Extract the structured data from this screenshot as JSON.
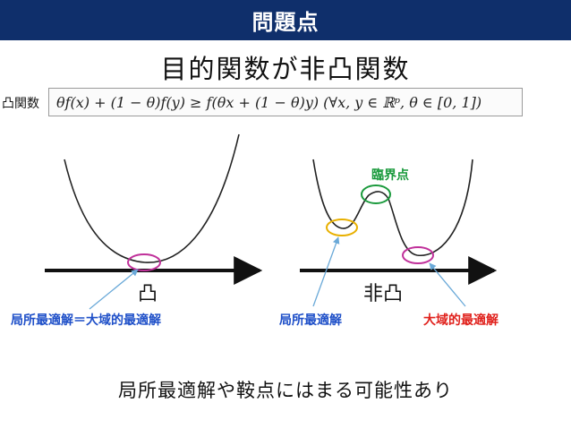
{
  "header": {
    "title": "問題点"
  },
  "subtitle": "目的関数が非凸関数",
  "formula": {
    "label": "凸関数",
    "expression": "θf(x) + (1 − θ)f(y) ≥ f(θx + (1 − θ)y)    (∀x, y ∈ ℝᵖ, θ ∈ [0, 1])"
  },
  "left_diagram": {
    "axis_label": "凸",
    "annotation": "局所最適解＝大域的最適解"
  },
  "right_diagram": {
    "axis_label": "非凸",
    "critical_point_label": "臨界点",
    "local_label": "局所最適解",
    "global_label": "大域的最適解"
  },
  "colors": {
    "header_bg": "#0f2f6b",
    "blue_text": "#1e4fc8",
    "green": "#1a9a3c",
    "red": "#e0201b",
    "magenta": "#c0309a",
    "yellow": "#e8b000",
    "arrow_blue": "#6aa9d8"
  },
  "footer": "局所最適解や鞍点にはまる可能性あり"
}
